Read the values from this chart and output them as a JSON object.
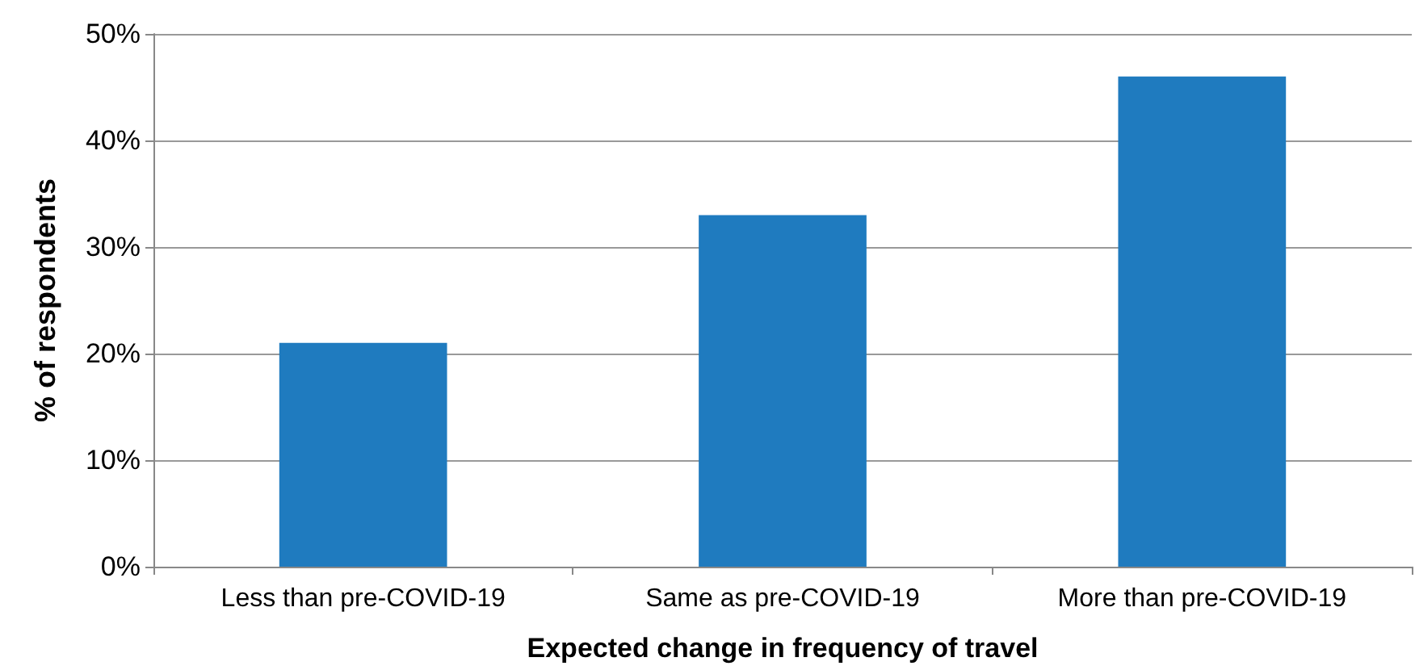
{
  "chart_data": {
    "type": "bar",
    "xlabel": "Expected change in frequency of travel",
    "ylabel": "% of respondents",
    "categories": [
      "Less than pre-COVID-19",
      "Same as pre-COVID-19",
      "More than pre-COVID-19"
    ],
    "values": [
      21,
      33,
      46
    ],
    "color": "#1f7bbf",
    "ylim": [
      0,
      50
    ],
    "yticks": [
      {
        "value": 0,
        "label": "0%"
      },
      {
        "value": 10,
        "label": "10%"
      },
      {
        "value": 20,
        "label": "20%"
      },
      {
        "value": 30,
        "label": "30%"
      },
      {
        "value": 40,
        "label": "40%"
      },
      {
        "value": 50,
        "label": "50%"
      }
    ],
    "grid": "y"
  }
}
